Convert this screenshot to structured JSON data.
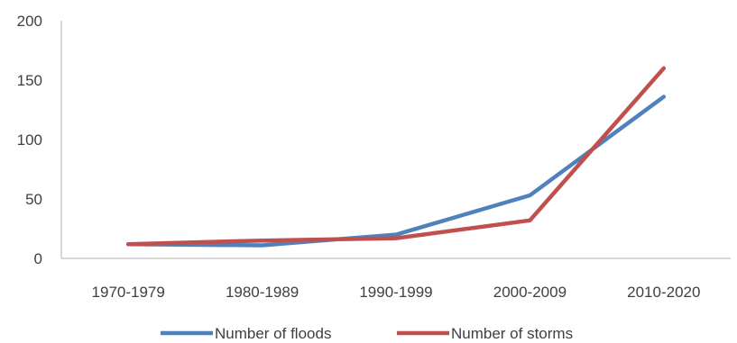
{
  "chart_data": {
    "type": "line",
    "categories": [
      "1970-1979",
      "1980-1989",
      "1990-1999",
      "2000-2009",
      "2010-2020"
    ],
    "series": [
      {
        "name": "Number of floods",
        "values": [
          12,
          11,
          20,
          53,
          136
        ],
        "color": "#4F81BD"
      },
      {
        "name": "Number of storms",
        "values": [
          12,
          15,
          17,
          32,
          160
        ],
        "color": "#C0504D"
      }
    ],
    "ylim": [
      0,
      200
    ],
    "yticks": [
      0,
      50,
      100,
      150,
      200
    ],
    "grid": false,
    "legend": "bottom",
    "title": "",
    "xlabel": "",
    "ylabel": ""
  }
}
